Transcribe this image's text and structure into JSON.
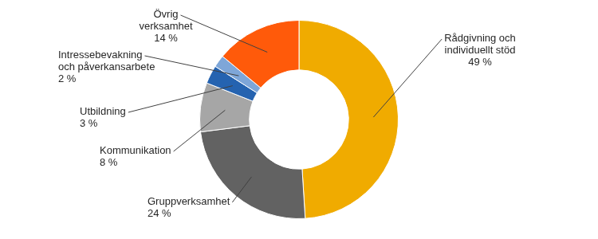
{
  "chart_data": {
    "type": "doughnut",
    "categories": [
      "Rådgivning och individuellt stöd",
      "Gruppverksamhet",
      "Kommunikation",
      "Utbildning",
      "Intressebevakning och påverkansarbete",
      "Övrig verksamhet"
    ],
    "values": [
      49,
      24,
      8,
      3,
      2,
      14
    ],
    "value_labels": [
      "49 %",
      "24 %",
      "8 %",
      "3 %",
      "2 %",
      "14 %"
    ],
    "colors": [
      "#f0ab00",
      "#626262",
      "#a6a6a6",
      "#2563b0",
      "#7ea6d8",
      "#ff5a0a"
    ],
    "data_labels": true
  }
}
